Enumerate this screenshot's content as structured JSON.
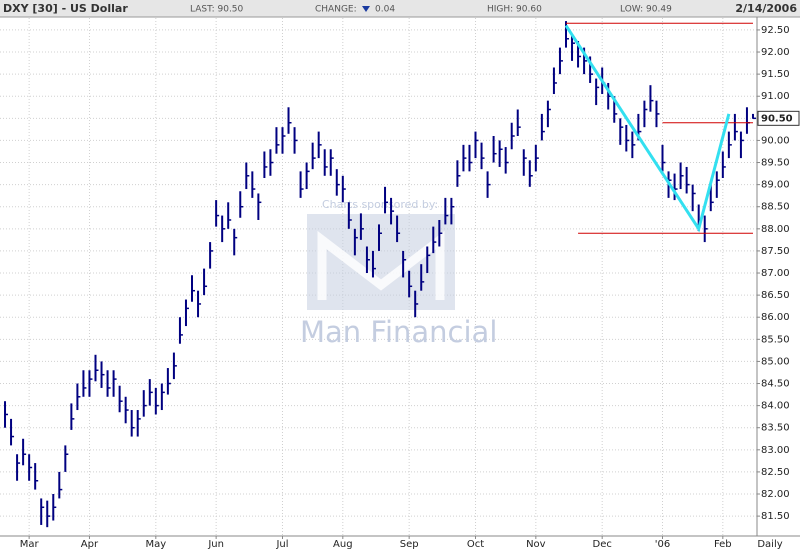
{
  "chart_data": {
    "type": "ohlc",
    "title": "DXY [30] - US Dollar",
    "header": {
      "last": "LAST: 90.50",
      "change_label": "CHANGE:",
      "change": "0.04",
      "high": "HIGH: 90.60",
      "low": "LOW: 90.49",
      "date": "2/14/2006"
    },
    "period": "Daily",
    "watermark": {
      "sponsor": "Charts sponsored by:",
      "brand": "Man Financial"
    },
    "color": "#000080",
    "grid": true,
    "categories": [
      null,
      null,
      null,
      null,
      "Mar",
      null,
      null,
      null,
      null,
      null,
      null,
      null,
      null,
      null,
      "Apr",
      null,
      null,
      null,
      null,
      null,
      null,
      null,
      null,
      null,
      null,
      "May",
      null,
      null,
      null,
      null,
      null,
      null,
      null,
      null,
      null,
      "Jun",
      null,
      null,
      null,
      null,
      null,
      null,
      null,
      null,
      null,
      null,
      "Jul",
      null,
      null,
      null,
      null,
      null,
      null,
      null,
      null,
      null,
      "Aug",
      null,
      null,
      null,
      null,
      null,
      null,
      null,
      null,
      null,
      null,
      "Sep",
      null,
      null,
      null,
      null,
      null,
      null,
      null,
      null,
      null,
      null,
      "Oct",
      null,
      null,
      null,
      null,
      null,
      null,
      null,
      null,
      null,
      "Nov",
      null,
      null,
      null,
      null,
      null,
      null,
      null,
      null,
      null,
      null,
      "Dec",
      null,
      null,
      null,
      null,
      null,
      null,
      null,
      null,
      null,
      "'06",
      null,
      null,
      null,
      null,
      null,
      null,
      null,
      null,
      null,
      "Feb",
      null,
      null,
      null,
      null,
      null
    ],
    "high": [
      84.1,
      83.7,
      82.9,
      83.25,
      82.9,
      82.7,
      81.9,
      81.85,
      82.0,
      82.5,
      83.1,
      84.05,
      84.5,
      84.8,
      84.8,
      85.15,
      85.0,
      84.8,
      84.8,
      84.45,
      84.2,
      83.9,
      83.9,
      84.35,
      84.6,
      84.4,
      84.5,
      84.85,
      85.2,
      86.0,
      86.4,
      86.95,
      86.6,
      87.1,
      87.7,
      88.65,
      88.3,
      88.6,
      88.0,
      88.85,
      89.5,
      89.3,
      88.8,
      89.75,
      89.8,
      90.3,
      90.3,
      90.75,
      90.3,
      89.3,
      89.5,
      89.95,
      90.2,
      89.8,
      89.8,
      89.35,
      89.2,
      88.6,
      88.0,
      88.35,
      87.6,
      87.5,
      88.1,
      88.95,
      88.7,
      88.3,
      87.5,
      87.05,
      86.6,
      87.2,
      87.6,
      88.05,
      88.2,
      88.7,
      88.7,
      89.55,
      89.9,
      89.9,
      90.2,
      89.95,
      89.3,
      90.1,
      90.0,
      89.85,
      90.4,
      90.7,
      89.8,
      89.55,
      89.9,
      90.6,
      90.9,
      91.65,
      92.1,
      92.7,
      92.4,
      92.25,
      92.1,
      91.9,
      91.4,
      91.65,
      91.3,
      91.0,
      90.5,
      90.35,
      90.2,
      90.6,
      90.9,
      91.25,
      90.9,
      89.9,
      89.3,
      89.25,
      89.5,
      89.4,
      89.0,
      88.55,
      88.3,
      89.0,
      89.3,
      89.75,
      90.2,
      90.6,
      90.2,
      90.75,
      90.6
    ],
    "low": [
      83.5,
      83.1,
      82.3,
      82.65,
      82.3,
      82.1,
      81.3,
      81.25,
      81.4,
      81.9,
      82.5,
      83.45,
      83.9,
      84.2,
      84.2,
      84.55,
      84.4,
      84.2,
      84.2,
      83.85,
      83.6,
      83.3,
      83.3,
      83.75,
      84.0,
      83.8,
      83.9,
      84.25,
      84.6,
      85.4,
      85.8,
      86.35,
      86.0,
      86.5,
      87.1,
      88.05,
      87.7,
      88.0,
      87.4,
      88.25,
      88.9,
      88.7,
      88.2,
      89.15,
      89.2,
      89.7,
      89.7,
      90.15,
      89.7,
      88.7,
      88.9,
      89.35,
      89.6,
      89.2,
      89.2,
      88.75,
      88.6,
      88.0,
      87.4,
      87.75,
      87.0,
      86.9,
      87.5,
      88.35,
      88.1,
      87.7,
      86.9,
      86.45,
      86.0,
      86.6,
      87.0,
      87.45,
      87.6,
      88.1,
      88.1,
      88.95,
      89.3,
      89.3,
      89.6,
      89.35,
      88.7,
      89.5,
      89.4,
      89.25,
      89.8,
      90.1,
      89.2,
      88.95,
      89.3,
      90.0,
      90.3,
      91.05,
      91.5,
      92.1,
      91.8,
      91.65,
      91.5,
      91.3,
      90.8,
      91.05,
      90.7,
      90.4,
      89.9,
      89.75,
      89.6,
      90.0,
      90.3,
      90.65,
      90.3,
      89.3,
      88.7,
      88.65,
      88.9,
      88.8,
      88.4,
      87.95,
      87.7,
      88.4,
      88.7,
      89.15,
      89.6,
      90.0,
      89.6,
      90.15,
      90.49
    ],
    "close": [
      83.8,
      83.3,
      82.7,
      82.9,
      82.6,
      82.3,
      81.7,
      81.5,
      81.7,
      82.1,
      82.9,
      83.7,
      84.2,
      84.4,
      84.6,
      84.8,
      84.7,
      84.4,
      84.6,
      84.1,
      83.9,
      83.5,
      83.7,
      84.0,
      84.3,
      84.0,
      84.3,
      84.5,
      84.9,
      85.6,
      86.2,
      86.6,
      86.3,
      86.7,
      87.5,
      88.3,
      88.0,
      88.2,
      87.8,
      88.5,
      89.2,
      88.9,
      88.6,
      89.4,
      89.5,
      89.9,
      90.1,
      90.4,
      90.0,
      88.9,
      89.3,
      89.6,
      89.9,
      89.4,
      89.6,
      89.0,
      88.9,
      88.2,
      87.8,
      88.0,
      87.3,
      87.1,
      87.9,
      88.6,
      88.4,
      87.9,
      87.3,
      86.7,
      86.3,
      86.8,
      87.4,
      87.7,
      87.9,
      88.3,
      88.5,
      89.2,
      89.6,
      89.5,
      90.0,
      89.6,
      89.0,
      89.7,
      89.8,
      89.5,
      90.1,
      90.3,
      89.6,
      89.2,
      89.6,
      90.2,
      90.7,
      91.3,
      91.8,
      92.3,
      92.2,
      91.9,
      91.8,
      91.5,
      91.2,
      91.3,
      91.0,
      90.6,
      90.3,
      90.0,
      89.9,
      90.2,
      90.7,
      90.9,
      90.6,
      89.5,
      89.1,
      88.9,
      89.2,
      89.0,
      88.8,
      88.2,
      88.0,
      88.6,
      89.1,
      89.4,
      89.9,
      90.2,
      90.0,
      90.4,
      90.5
    ],
    "ylim": [
      81.05,
      92.77
    ],
    "yticks": [
      {
        "value": 81.5,
        "label": "81.50"
      },
      {
        "value": 82,
        "label": "82.00"
      },
      {
        "value": 82.5,
        "label": "82.50"
      },
      {
        "value": 83,
        "label": "83.00"
      },
      {
        "value": 83.5,
        "label": "83.50"
      },
      {
        "value": 84,
        "label": "84.00"
      },
      {
        "value": 84.5,
        "label": "84.50"
      },
      {
        "value": 85,
        "label": "85.00"
      },
      {
        "value": 85.5,
        "label": "85.50"
      },
      {
        "value": 86,
        "label": "86.00"
      },
      {
        "value": 86.5,
        "label": "86.50"
      },
      {
        "value": 87,
        "label": "87.00"
      },
      {
        "value": 87.5,
        "label": "87.50"
      },
      {
        "value": 88,
        "label": "88.00"
      },
      {
        "value": 88.5,
        "label": "88.50"
      },
      {
        "value": 89,
        "label": "89.00"
      },
      {
        "value": 89.5,
        "label": "89.50"
      },
      {
        "value": 90,
        "label": "90.00"
      },
      {
        "value": 90.5,
        "label": "90.50"
      },
      {
        "value": 91,
        "label": "91.00"
      },
      {
        "value": 91.5,
        "label": "91.50"
      },
      {
        "value": 92,
        "label": "92.00"
      },
      {
        "value": 92.5,
        "label": "92.50"
      }
    ],
    "last_marker": {
      "value": 90.5,
      "label": "90.50"
    },
    "hlines": [
      {
        "value": 92.65,
        "x": [
          93,
          124
        ],
        "color": "#d00000"
      },
      {
        "value": 90.4,
        "x": [
          109,
          124
        ],
        "color": "#d00000"
      },
      {
        "value": 87.9,
        "x": [
          95,
          124
        ],
        "color": "#d00000"
      }
    ],
    "trendline": {
      "x": [
        93,
        115,
        120
      ],
      "y": [
        92.6,
        88.0,
        90.6
      ],
      "color": "#33e0f0"
    }
  }
}
